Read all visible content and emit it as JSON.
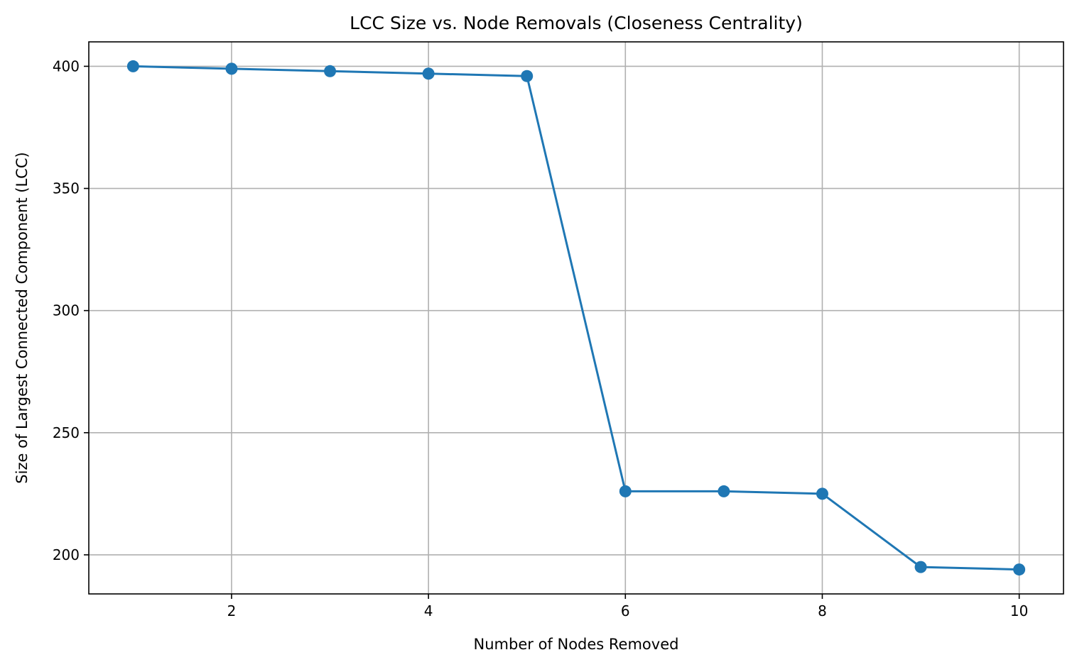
{
  "chart_data": {
    "type": "line",
    "title": "LCC Size vs. Node Removals (Closeness Centrality)",
    "xlabel": "Number of Nodes Removed",
    "ylabel": "Size of Largest Connected Component (LCC)",
    "x": [
      1,
      2,
      3,
      4,
      5,
      6,
      7,
      8,
      9,
      10
    ],
    "series": [
      {
        "values": [
          400,
          399,
          398,
          397,
          396,
          226,
          226,
          225,
          195,
          194
        ],
        "color": "#1f77b4",
        "marker": "circle"
      }
    ],
    "xlim": [
      0.55,
      10.45
    ],
    "ylim": [
      184,
      410
    ],
    "xticks": [
      2,
      4,
      6,
      8,
      10
    ],
    "yticks": [
      200,
      250,
      300,
      350,
      400
    ],
    "grid": true,
    "grid_color": "#b0b0b0"
  }
}
